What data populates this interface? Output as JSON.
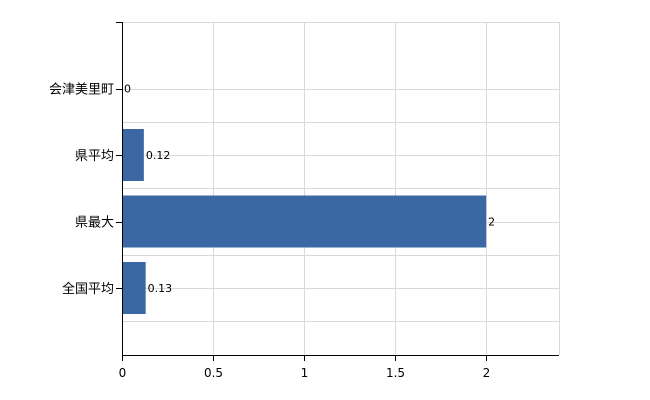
{
  "chart_data": {
    "type": "bar",
    "orientation": "horizontal",
    "categories": [
      "会津美里町",
      "県平均",
      "県最大",
      "全国平均"
    ],
    "values": [
      0,
      0.12,
      2,
      0.13
    ],
    "value_labels": [
      "0",
      "0.12",
      "2",
      "0.13"
    ],
    "x_ticks": [
      0,
      0.5,
      1,
      1.5,
      2
    ],
    "x_tick_labels": [
      "0",
      "0.5",
      "1",
      "1.5",
      "2"
    ],
    "xlim": [
      0,
      2.4
    ],
    "title": "",
    "xlabel": "",
    "ylabel": "",
    "grid": true,
    "legend": "none"
  },
  "colors": {
    "bar": "#3b67a5",
    "grid": "#d9d9d9",
    "axis": "#000000"
  }
}
